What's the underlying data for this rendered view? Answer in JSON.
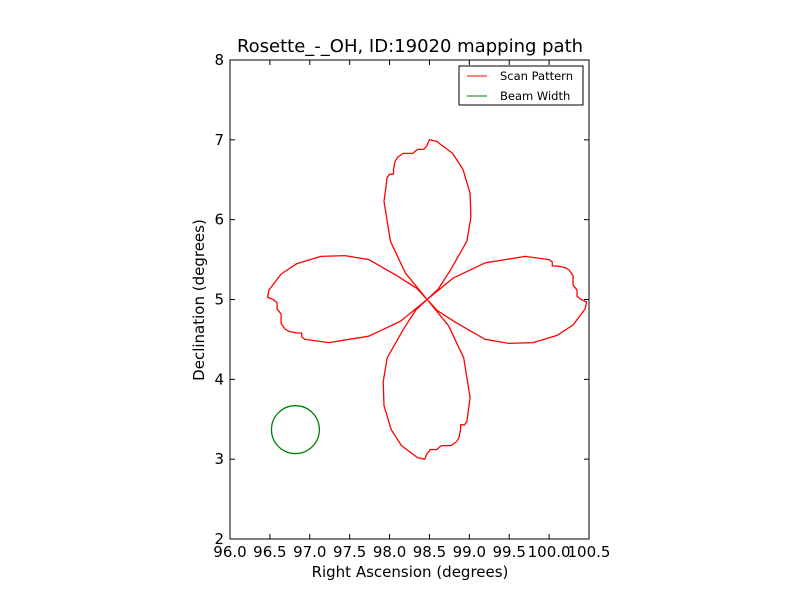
{
  "chart_data": {
    "type": "line",
    "title": "Rosette_-_OH, ID:19020 mapping path",
    "xlabel": "Right Ascension (degrees)",
    "ylabel": "Declination (degrees)",
    "xlim": [
      96.0,
      100.5
    ],
    "ylim": [
      2.0,
      8.0
    ],
    "xticks": [
      96.0,
      96.5,
      97.0,
      97.5,
      98.0,
      98.5,
      99.0,
      99.5,
      100.0,
      100.5
    ],
    "xtick_labels": [
      "96.0",
      "96.5",
      "97.0",
      "97.5",
      "98.0",
      "98.5",
      "99.0",
      "99.5",
      "100.0",
      "100.5"
    ],
    "yticks": [
      2,
      3,
      4,
      5,
      6,
      7,
      8
    ],
    "ytick_labels": [
      "2",
      "3",
      "4",
      "5",
      "6",
      "7",
      "8"
    ],
    "grid": false,
    "legend_position": "top-right",
    "series": [
      {
        "name": "Scan Pattern",
        "color": "#ff0000",
        "shape": "four-petal rosette",
        "center": [
          98.47,
          5.0
        ],
        "petal_length": 2.0,
        "petal_half_width": 0.55,
        "points_x": [
          98.47,
          98.8,
          99.2,
          99.7,
          100.0,
          100.04,
          100.04,
          100.1,
          100.2,
          100.25,
          100.3,
          100.3,
          100.35,
          100.35,
          100.4,
          100.47,
          100.45,
          100.3,
          100.1,
          99.8,
          99.5,
          99.2,
          98.85,
          98.6,
          98.47
        ],
        "points_y": [
          5.0,
          5.27,
          5.46,
          5.54,
          5.5,
          5.47,
          5.42,
          5.42,
          5.4,
          5.37,
          5.3,
          5.18,
          5.12,
          5.04,
          5.0,
          4.97,
          4.88,
          4.68,
          4.55,
          4.46,
          4.45,
          4.5,
          4.7,
          4.86,
          5.0
        ]
      },
      {
        "name": "Beam Width",
        "color": "#008000",
        "shape": "circle",
        "center": [
          96.82,
          3.37
        ],
        "radius": 0.3
      }
    ]
  }
}
